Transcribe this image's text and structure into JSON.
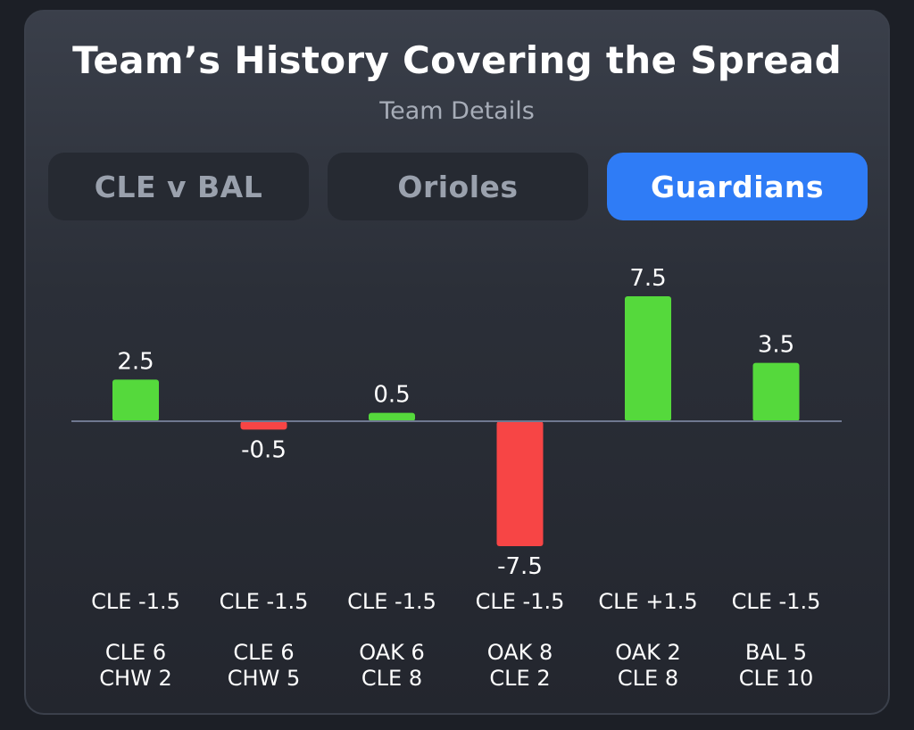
{
  "header": {
    "title": "Team’s History Covering the Spread",
    "subtitle": "Team Details"
  },
  "tabs": [
    {
      "label": "CLE v BAL",
      "active": false
    },
    {
      "label": "Orioles",
      "active": false
    },
    {
      "label": "Guardians",
      "active": true
    }
  ],
  "colors": {
    "positive": "#55d93c",
    "negative": "#f74545",
    "active_tab": "#2f7cf6",
    "baseline": "#6f7890"
  },
  "chart_data": {
    "type": "bar",
    "title": "",
    "xlabel": "",
    "ylabel": "",
    "ylim": [
      -7.5,
      7.5
    ],
    "grid": false,
    "categories": [
      {
        "spread": "CLE -1.5",
        "score_line1": "CLE 6",
        "score_line2": "CHW 2"
      },
      {
        "spread": "CLE -1.5",
        "score_line1": "CLE 6",
        "score_line2": "CHW 5"
      },
      {
        "spread": "CLE -1.5",
        "score_line1": "OAK 6",
        "score_line2": "CLE 8"
      },
      {
        "spread": "CLE -1.5",
        "score_line1": "OAK 8",
        "score_line2": "CLE 2"
      },
      {
        "spread": "CLE +1.5",
        "score_line1": "OAK 2",
        "score_line2": "CLE 8"
      },
      {
        "spread": "CLE -1.5",
        "score_line1": "BAL 5",
        "score_line2": "CLE 10"
      }
    ],
    "values": [
      2.5,
      -0.5,
      0.5,
      -7.5,
      7.5,
      3.5
    ],
    "value_labels": [
      "2.5",
      "-0.5",
      "0.5",
      "-7.5",
      "7.5",
      "3.5"
    ]
  }
}
